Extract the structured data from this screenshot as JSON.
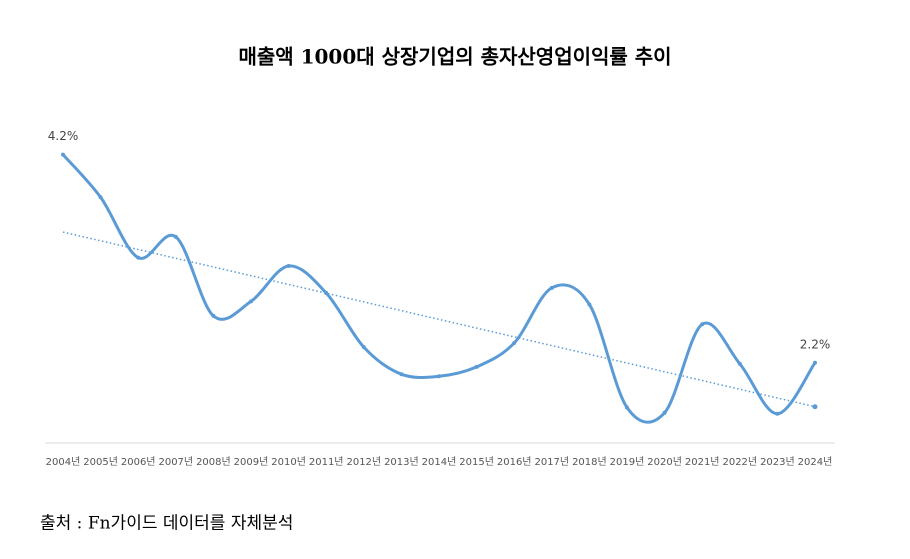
{
  "chart_data": {
    "type": "line",
    "title": "매출액 1000대 상장기업의 총자산영업이익률 추이",
    "categories": [
      "2004년",
      "2005년",
      "2006년",
      "2007년",
      "2008년",
      "2009년",
      "2010년",
      "2011년",
      "2012년",
      "2013년",
      "2014년",
      "2015년",
      "2016년",
      "2017년",
      "2018년",
      "2019년",
      "2020년",
      "2021년",
      "2022년",
      "2023년",
      "2024년"
    ],
    "values": [
      4.2,
      3.79,
      3.21,
      3.41,
      2.65,
      2.79,
      3.13,
      2.87,
      2.35,
      2.09,
      2.07,
      2.16,
      2.39,
      2.92,
      2.76,
      1.77,
      1.72,
      2.57,
      2.19,
      1.71,
      2.2
    ],
    "value_labels": [
      "4.2%",
      null,
      null,
      null,
      null,
      null,
      null,
      null,
      null,
      null,
      null,
      null,
      null,
      null,
      null,
      null,
      null,
      null,
      null,
      null,
      "2.2%"
    ],
    "color": "#5b9bd5",
    "smooth": true,
    "trendline": true,
    "ylim": [
      1.4,
      4.6
    ],
    "source": "출처 : Fn가이드 데이터를 자체분석"
  }
}
